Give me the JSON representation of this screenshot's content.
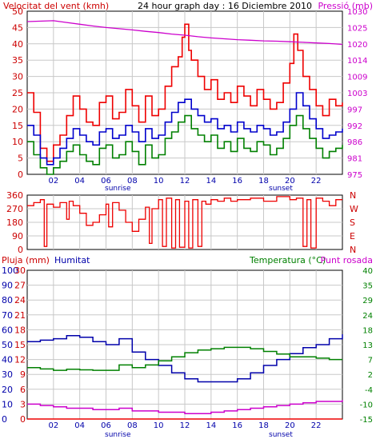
{
  "colors": {
    "background": "#ffffff",
    "frame": "#000000",
    "grid": "#c8c8c8",
    "wind_gust": "#ee0000",
    "wind_avg": "#0000cc",
    "wind_min": "#008000",
    "pressure": "#cc00cc",
    "direction": "#ee0000",
    "rain": "#ee0000",
    "humidity": "#0000aa",
    "temperature": "#008000",
    "dew_point": "#cc00cc",
    "tick_red": "#cc0000",
    "tick_blue": "#0000aa"
  },
  "header": {
    "wind_label": "Velocitat del vent (kmh)",
    "title": "24 hour graph day : 16 Diciembre 2010",
    "pressure_label": "Pressió (mb)"
  },
  "labels": {
    "sunrise": "sunrise",
    "sunset": "sunset",
    "rain_label": "Pluja (mm)",
    "humidity_label": "Humitat",
    "temp_label": "Temperatura (°C)",
    "dew_label": "Punt rosada"
  },
  "axes": {
    "hours": [
      "02",
      "04",
      "06",
      "08",
      "10",
      "12",
      "14",
      "16",
      "18",
      "20",
      "22"
    ],
    "wind_ticks": [
      "0",
      "5",
      "10",
      "15",
      "20",
      "25",
      "30",
      "35",
      "40",
      "45",
      "50"
    ],
    "pressure_ticks": [
      "975",
      "981",
      "986",
      "992",
      "997",
      "1003",
      "1009",
      "1014",
      "1020",
      "1025",
      "1030"
    ],
    "dir_deg_ticks": [
      "0",
      "90",
      "180",
      "270",
      "360"
    ],
    "dir_cardinal": [
      "N",
      "E",
      "S",
      "W",
      "N"
    ],
    "rain_ticks": [
      "0",
      "3",
      "6",
      "9",
      "12",
      "15",
      "18",
      "21",
      "24",
      "27",
      "30"
    ],
    "humidity_ticks": [
      "0",
      "10",
      "20",
      "30",
      "40",
      "50",
      "60",
      "70",
      "80",
      "90",
      "100"
    ],
    "temp_ticks": [
      "-15",
      "-10",
      "-4",
      "2",
      "7",
      "13",
      "18",
      "24",
      "29",
      "35",
      "40"
    ]
  },
  "chart_data": [
    {
      "type": "line",
      "title": "24 hour graph day : 16 Diciembre 2010",
      "ylabel": "Velocitat del vent (kmh)",
      "y2label": "Pressió (mb)",
      "xlim": [
        0,
        24
      ],
      "ylim": [
        0,
        50
      ],
      "y2lim": [
        975,
        1030
      ],
      "grid": true,
      "series": [
        {
          "name": "wind_gust",
          "x": [
            0,
            0.5,
            1,
            1.5,
            2,
            2.5,
            3,
            3.5,
            4,
            4.5,
            5,
            5.5,
            6,
            6.5,
            7,
            7.5,
            8,
            8.5,
            9,
            9.5,
            10,
            10.5,
            11,
            11.5,
            11.8,
            12,
            12.3,
            12.5,
            13,
            13.5,
            14,
            14.5,
            15,
            15.5,
            16,
            16.5,
            17,
            17.5,
            18,
            18.5,
            19,
            19.5,
            20,
            20.3,
            20.6,
            21,
            21.5,
            22,
            22.5,
            23,
            23.5,
            24
          ],
          "y": [
            25,
            19,
            8,
            4,
            9,
            12,
            18,
            24,
            20,
            16,
            15,
            22,
            24,
            17,
            19,
            26,
            21,
            16,
            24,
            18,
            20,
            27,
            33,
            36,
            42,
            46,
            38,
            35,
            30,
            26,
            29,
            23,
            25,
            22,
            27,
            24,
            21,
            26,
            23,
            20,
            22,
            28,
            34,
            43,
            38,
            30,
            26,
            21,
            18,
            23,
            21,
            22
          ]
        },
        {
          "name": "wind_avg",
          "x": [
            0,
            0.5,
            1,
            1.5,
            2,
            2.5,
            3,
            3.5,
            4,
            4.5,
            5,
            5.5,
            6,
            6.5,
            7,
            7.5,
            8,
            8.5,
            9,
            9.5,
            10,
            10.5,
            11,
            11.5,
            12,
            12.5,
            13,
            13.5,
            14,
            14.5,
            15,
            15.5,
            16,
            16.5,
            17,
            17.5,
            18,
            18.5,
            19,
            19.5,
            20,
            20.5,
            21,
            21.5,
            22,
            22.5,
            23,
            23.5,
            24
          ],
          "y": [
            15,
            12,
            5,
            3,
            5,
            8,
            11,
            14,
            12,
            10,
            9,
            13,
            14,
            11,
            12,
            15,
            13,
            10,
            14,
            11,
            12,
            16,
            19,
            22,
            23,
            20,
            18,
            16,
            17,
            14,
            15,
            13,
            16,
            14,
            13,
            15,
            14,
            12,
            13,
            16,
            20,
            25,
            21,
            17,
            14,
            11,
            12,
            13,
            14
          ]
        },
        {
          "name": "wind_min",
          "x": [
            0,
            0.5,
            1,
            1.5,
            2,
            2.5,
            3,
            3.5,
            4,
            4.5,
            5,
            5.5,
            6,
            6.5,
            7,
            7.5,
            8,
            8.5,
            9,
            9.5,
            10,
            10.5,
            11,
            11.5,
            12,
            12.5,
            13,
            13.5,
            14,
            14.5,
            15,
            15.5,
            16,
            16.5,
            17,
            17.5,
            18,
            18.5,
            19,
            19.5,
            20,
            20.5,
            21,
            21.5,
            22,
            22.5,
            23,
            23.5,
            24
          ],
          "y": [
            10,
            6,
            2,
            0,
            2,
            4,
            7,
            9,
            6,
            4,
            3,
            8,
            9,
            5,
            6,
            10,
            7,
            3,
            9,
            5,
            6,
            11,
            13,
            16,
            18,
            14,
            12,
            10,
            12,
            8,
            10,
            7,
            11,
            8,
            7,
            10,
            9,
            6,
            8,
            11,
            15,
            18,
            14,
            11,
            8,
            5,
            7,
            8,
            9
          ]
        },
        {
          "name": "pressure",
          "axis": "y2",
          "x": [
            0,
            2,
            3,
            4,
            5,
            6,
            7,
            8,
            9,
            10,
            11,
            12,
            13,
            14,
            15,
            16,
            17,
            18,
            19,
            20,
            21,
            22,
            23,
            24
          ],
          "y": [
            1026.5,
            1026.8,
            1026.2,
            1025.6,
            1025.0,
            1024.5,
            1024.1,
            1023.7,
            1023.2,
            1022.8,
            1022.3,
            1021.9,
            1021.4,
            1021.0,
            1020.7,
            1020.4,
            1020.2,
            1020.0,
            1019.9,
            1019.7,
            1019.5,
            1019.3,
            1019.1,
            1018.8
          ]
        }
      ]
    },
    {
      "type": "line",
      "ylabel": "Direcció",
      "xlim": [
        0,
        24
      ],
      "ylim": [
        0,
        360
      ],
      "grid": true,
      "series": [
        {
          "name": "direction",
          "x": [
            0,
            0.5,
            1,
            1.3,
            1.5,
            2,
            2.5,
            3,
            3.2,
            3.5,
            4,
            4.5,
            5,
            5.5,
            6,
            6.2,
            6.5,
            7,
            7.5,
            8,
            8.5,
            9,
            9.3,
            9.5,
            10,
            10.3,
            10.6,
            11,
            11.3,
            11.6,
            12,
            12.3,
            12.6,
            13,
            13.3,
            13.6,
            14,
            14.5,
            15,
            15.5,
            16,
            17,
            18,
            19,
            20,
            20.5,
            21,
            21.3,
            21.6,
            22,
            22.5,
            23,
            23.5,
            24
          ],
          "y": [
            290,
            310,
            330,
            20,
            300,
            280,
            310,
            200,
            320,
            290,
            240,
            160,
            180,
            230,
            300,
            150,
            310,
            260,
            180,
            120,
            200,
            280,
            40,
            270,
            330,
            20,
            340,
            10,
            330,
            15,
            320,
            10,
            330,
            20,
            320,
            300,
            330,
            320,
            340,
            320,
            330,
            340,
            320,
            350,
            330,
            340,
            20,
            330,
            10,
            340,
            320,
            290,
            330,
            330
          ]
        }
      ]
    },
    {
      "type": "line",
      "xlim": [
        0,
        24
      ],
      "ylim": [
        0,
        100
      ],
      "y_rain_lim": [
        0,
        30
      ],
      "y_temp_lim": [
        -15,
        40
      ],
      "grid": true,
      "series": [
        {
          "name": "humidity",
          "x": [
            0,
            1,
            2,
            3,
            4,
            5,
            6,
            7,
            8,
            9,
            10,
            11,
            12,
            13,
            14,
            15,
            16,
            17,
            18,
            19,
            20,
            21,
            22,
            23,
            24
          ],
          "y": [
            52,
            53,
            54,
            56,
            55,
            52,
            50,
            54,
            45,
            40,
            36,
            31,
            27,
            25,
            25,
            25,
            27,
            31,
            36,
            40,
            44,
            48,
            50,
            54,
            57
          ]
        },
        {
          "name": "temperature",
          "axis": "y_temp",
          "x": [
            0,
            1,
            2,
            3,
            4,
            5,
            6,
            7,
            8,
            9,
            10,
            11,
            12,
            13,
            14,
            15,
            16,
            17,
            18,
            19,
            20,
            21,
            22,
            23,
            24
          ],
          "y": [
            4,
            3.5,
            3,
            3.4,
            3.2,
            3,
            3,
            5,
            4,
            5,
            6.5,
            8,
            9.5,
            10.5,
            11,
            11.5,
            11.5,
            11,
            10,
            9,
            8,
            8,
            7.5,
            7,
            7
          ]
        },
        {
          "name": "dew_point",
          "axis": "y_temp",
          "x": [
            0,
            1,
            2,
            3,
            4,
            5,
            6,
            7,
            8,
            9,
            10,
            11,
            12,
            13,
            14,
            15,
            16,
            17,
            18,
            19,
            20,
            21,
            22,
            23,
            24
          ],
          "y": [
            -9.5,
            -10,
            -10.5,
            -11,
            -11,
            -11.5,
            -11.5,
            -11,
            -12,
            -12,
            -12.5,
            -12.5,
            -13,
            -13,
            -12.5,
            -12,
            -11.5,
            -11,
            -10.5,
            -10,
            -9.5,
            -9,
            -8.5,
            -8.5,
            -8
          ]
        },
        {
          "name": "rain",
          "axis": "y_rain",
          "x": [
            0,
            24
          ],
          "y": [
            0,
            0
          ]
        }
      ]
    }
  ]
}
